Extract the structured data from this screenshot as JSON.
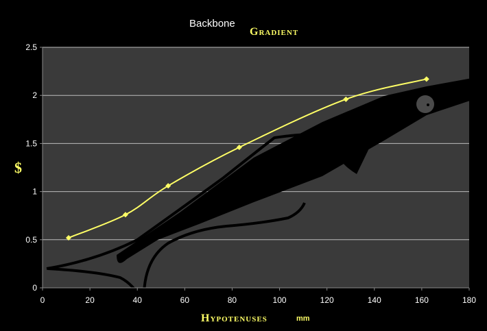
{
  "colors": {
    "background": "#000000",
    "plot_area": "#3a3a3a",
    "gridline": "#bdbdbd",
    "series": "#ffff66",
    "fish": "#000000"
  },
  "chart_data": {
    "type": "line",
    "title": "Backbone",
    "subtitle": "Gradient",
    "xlabel": "Hypotenuses",
    "xunit": "mm",
    "ylabel": "$",
    "xlim": [
      0,
      180
    ],
    "ylim": [
      0,
      2.5
    ],
    "xticks": [
      0,
      20,
      40,
      60,
      80,
      100,
      120,
      140,
      160,
      180
    ],
    "yticks": [
      0,
      0.5,
      1,
      1.5,
      2,
      2.5
    ],
    "grid": "horizontal",
    "legend": "none",
    "marker": "diamond",
    "series": [
      {
        "x": [
          11,
          35,
          53,
          83,
          128,
          162
        ],
        "y": [
          0.52,
          0.76,
          1.06,
          1.46,
          1.96,
          2.17
        ]
      }
    ],
    "decoration": "fish-silhouette"
  }
}
